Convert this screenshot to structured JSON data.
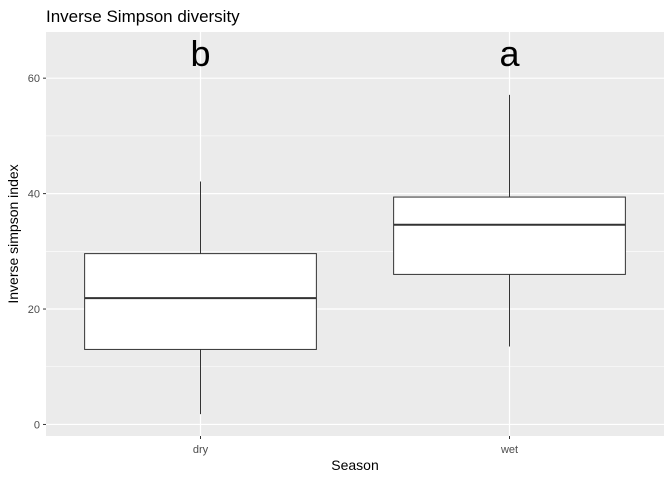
{
  "chart_data": {
    "type": "boxplot",
    "title": "Inverse Simpson diversity",
    "xlabel": "Season",
    "ylabel": "Inverse simpson index",
    "ylim": [
      -2,
      68
    ],
    "y_ticks": [
      0,
      20,
      40,
      60
    ],
    "y_tick_labels": [
      "0",
      "20",
      "40",
      "60"
    ],
    "grid": true,
    "categories": [
      "dry",
      "wet"
    ],
    "boxes": [
      {
        "category": "dry",
        "min": 1.8,
        "q1": 13.0,
        "median": 21.9,
        "q3": 29.6,
        "max": 42.1,
        "letter": "b"
      },
      {
        "category": "wet",
        "min": 13.5,
        "q1": 26.0,
        "median": 34.6,
        "q3": 39.4,
        "max": 57.1,
        "letter": "a"
      }
    ],
    "colors": {
      "panel_bg": "#ebebeb",
      "grid_major": "#ffffff",
      "box_fill": "#ffffff",
      "box_stroke": "#333333"
    }
  }
}
